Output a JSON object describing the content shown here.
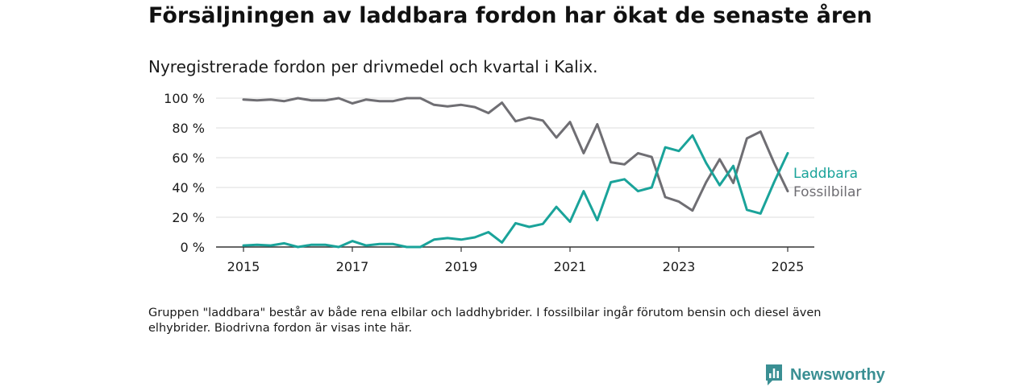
{
  "header": {
    "title": "Försäljningen av laddbara fordon har ökat de senaste åren",
    "subtitle": "Nyregistrerade fordon per drivmedel och kvartal i Kalix."
  },
  "footer": {
    "note": "Gruppen \"laddbara\" består av både rena elbilar och laddhybrider. I fossilbilar ingår förutom bensin och diesel även elhybrider. Biodrivna fordon är visas inte här.",
    "brand": "Newsworthy"
  },
  "colors": {
    "laddbara": "#1aa39a",
    "fossil": "#6f6e73",
    "grid": "#dddddd",
    "axis": "#333333"
  },
  "icons": {
    "brand": "chart-bubble-icon"
  },
  "chart_data": {
    "type": "line",
    "title": "Försäljningen av laddbara fordon har ökat de senaste åren",
    "subtitle": "Nyregistrerade fordon per drivmedel och kvartal i Kalix.",
    "xlim": [
      2015,
      2025
    ],
    "ylim": [
      0,
      100
    ],
    "x_ticks": [
      2015,
      2017,
      2019,
      2021,
      2023,
      2025
    ],
    "x_tick_labels": [
      "2015",
      "2017",
      "2019",
      "2021",
      "2023",
      "2025"
    ],
    "y_ticks": [
      0,
      20,
      40,
      60,
      80,
      100
    ],
    "y_tick_labels": [
      "0 %",
      "20 %",
      "40 %",
      "60 %",
      "80 %",
      "100 %"
    ],
    "grid": true,
    "legend": "right-end-labels",
    "x": [
      2015.0,
      2015.25,
      2015.5,
      2015.75,
      2016.0,
      2016.25,
      2016.5,
      2016.75,
      2017.0,
      2017.25,
      2017.5,
      2017.75,
      2018.0,
      2018.25,
      2018.5,
      2018.75,
      2019.0,
      2019.25,
      2019.5,
      2019.75,
      2020.0,
      2020.25,
      2020.5,
      2020.75,
      2021.0,
      2021.25,
      2021.5,
      2021.75,
      2022.0,
      2022.25,
      2022.5,
      2022.75,
      2023.0,
      2023.25,
      2023.5,
      2023.75,
      2024.0,
      2024.25,
      2024.5,
      2024.75,
      2025.0
    ],
    "series": [
      {
        "name": "Laddbara",
        "color": "#1aa39a",
        "values": [
          1,
          1.5,
          1,
          2.5,
          0,
          1.5,
          1.5,
          0,
          4,
          1,
          2,
          2,
          0,
          0,
          5,
          6,
          5,
          6.5,
          10,
          3,
          16,
          13.5,
          15.5,
          27,
          17,
          37.5,
          18,
          43.5,
          45.5,
          37.5,
          40,
          67,
          64.5,
          75,
          56.5,
          41.5,
          54.5,
          25,
          22.5,
          43.5,
          63
        ]
      },
      {
        "name": "Fossilbilar",
        "color": "#6f6e73",
        "values": [
          99,
          98.5,
          99,
          98,
          100,
          98.5,
          98.5,
          100,
          96.5,
          99,
          98,
          98,
          100,
          100,
          95.5,
          94.5,
          95.5,
          94,
          90,
          97,
          84.5,
          87,
          85,
          73.5,
          84,
          63,
          82.5,
          57,
          55.5,
          63,
          60.5,
          33.5,
          30.5,
          24.5,
          43.5,
          59,
          43,
          73,
          77.5,
          56.5,
          37.5
        ]
      }
    ]
  }
}
